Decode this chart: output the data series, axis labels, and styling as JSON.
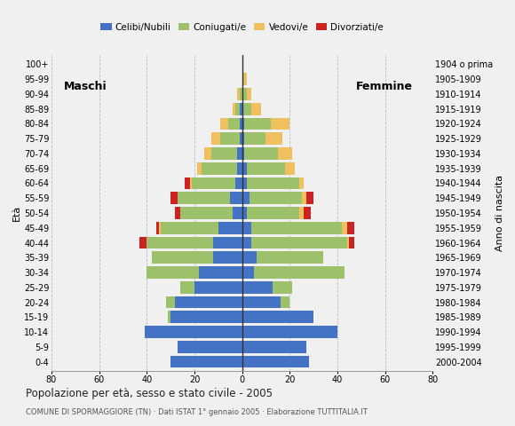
{
  "age_groups": [
    "0-4",
    "5-9",
    "10-14",
    "15-19",
    "20-24",
    "25-29",
    "30-34",
    "35-39",
    "40-44",
    "45-49",
    "50-54",
    "55-59",
    "60-64",
    "65-69",
    "70-74",
    "75-79",
    "80-84",
    "85-89",
    "90-94",
    "95-99",
    "100+"
  ],
  "birth_years": [
    "2000-2004",
    "1995-1999",
    "1990-1994",
    "1985-1989",
    "1980-1984",
    "1975-1979",
    "1970-1974",
    "1965-1969",
    "1960-1964",
    "1955-1959",
    "1950-1954",
    "1945-1949",
    "1940-1944",
    "1935-1939",
    "1930-1934",
    "1925-1929",
    "1920-1924",
    "1915-1919",
    "1910-1914",
    "1905-1909",
    "1904 o prima"
  ],
  "males_celibe": [
    30,
    27,
    41,
    30,
    28,
    20,
    18,
    12,
    12,
    10,
    4,
    5,
    3,
    2,
    2,
    1,
    1,
    1,
    0,
    0,
    0
  ],
  "males_coniugato": [
    0,
    0,
    0,
    1,
    4,
    6,
    22,
    26,
    28,
    24,
    22,
    22,
    18,
    15,
    11,
    8,
    5,
    2,
    1,
    0,
    0
  ],
  "males_vedovo": [
    0,
    0,
    0,
    0,
    0,
    0,
    0,
    0,
    0,
    1,
    0,
    0,
    1,
    2,
    3,
    4,
    3,
    1,
    1,
    0,
    0
  ],
  "males_divorziato": [
    0,
    0,
    0,
    0,
    0,
    0,
    0,
    0,
    3,
    1,
    2,
    3,
    2,
    0,
    0,
    0,
    0,
    0,
    0,
    0,
    0
  ],
  "females_nubile": [
    28,
    27,
    40,
    30,
    16,
    13,
    5,
    6,
    4,
    4,
    2,
    3,
    2,
    2,
    1,
    1,
    1,
    0,
    0,
    0,
    0
  ],
  "females_coniugata": [
    0,
    0,
    0,
    0,
    4,
    8,
    38,
    28,
    40,
    38,
    22,
    22,
    22,
    16,
    14,
    9,
    11,
    4,
    2,
    1,
    0
  ],
  "females_vedova": [
    0,
    0,
    0,
    0,
    0,
    0,
    0,
    0,
    1,
    2,
    2,
    2,
    2,
    4,
    6,
    7,
    8,
    4,
    2,
    1,
    0
  ],
  "females_divorziata": [
    0,
    0,
    0,
    0,
    0,
    0,
    0,
    0,
    2,
    3,
    3,
    3,
    0,
    0,
    0,
    0,
    0,
    0,
    0,
    0,
    0
  ],
  "colors": {
    "celibe": "#4472C4",
    "coniugato": "#9DC16A",
    "vedovo": "#F0C060",
    "divorziato": "#CC2222"
  },
  "title": "Popolazione per età, sesso e stato civile - 2005",
  "subtitle": "COMUNE DI SPORMAGGIORE (TN) · Dati ISTAT 1° gennaio 2005 · Elaborazione TUTTITALIA.IT",
  "label_maschi": "Maschi",
  "label_femmine": "Femmine",
  "ylabel_left": "Età",
  "ylabel_right": "Anno di nascita",
  "xlim": 80,
  "legend_labels": [
    "Celibi/Nubili",
    "Coniugati/e",
    "Vedovi/e",
    "Divorziati/e"
  ],
  "bg_color": "#f0f0f0"
}
